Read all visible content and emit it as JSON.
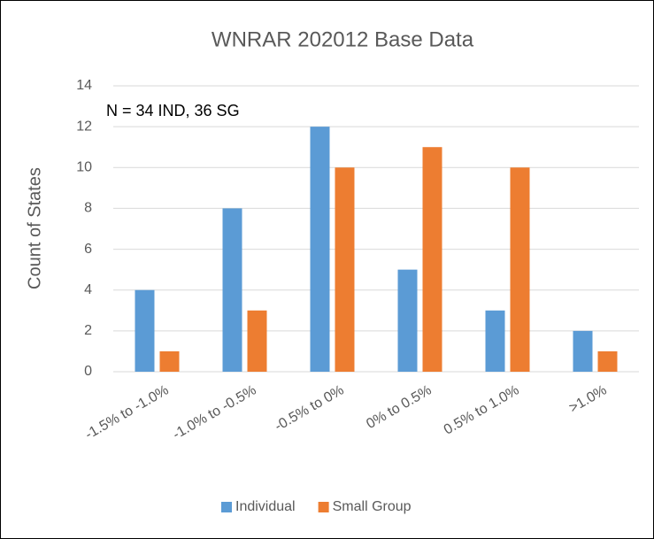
{
  "chart_data": {
    "type": "bar",
    "title": "WNRAR 202012 Base Data",
    "annotation": "N = 34 IND, 36 SG",
    "y_label": "Count of States",
    "categories": [
      "-1.5% to -1.0%",
      "-1.0% to -0.5%",
      "-0.5% to 0%",
      "0% to 0.5%",
      "0.5% to 1.0%",
      ">1.0%"
    ],
    "series": [
      {
        "name": "Individual",
        "color": "#5b9bd5",
        "values": [
          4,
          8,
          12,
          5,
          3,
          2
        ]
      },
      {
        "name": "Small Group",
        "color": "#ed7d31",
        "values": [
          1,
          3,
          10,
          11,
          10,
          1
        ]
      }
    ],
    "ylim": [
      0,
      14
    ],
    "yticks": [
      0,
      2,
      4,
      6,
      8,
      10,
      12,
      14
    ],
    "grid": true,
    "legend": "bottom"
  }
}
